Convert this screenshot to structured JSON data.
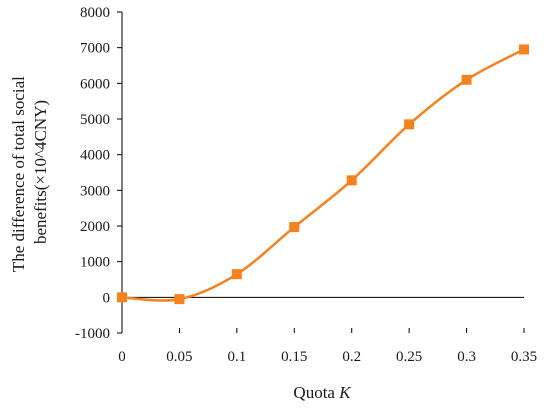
{
  "chart_data": {
    "type": "line",
    "title": "",
    "xlabel": "Quota",
    "xlabel_var": "K",
    "ylabel_line1": "The difference of total social",
    "ylabel_line2": "benefits(×10^4CNY)",
    "x": [
      0,
      0.05,
      0.1,
      0.15,
      0.2,
      0.25,
      0.3,
      0.35
    ],
    "x_tick_labels": [
      "0",
      "0.05",
      "0.1",
      "0.15",
      "0.2",
      "0.25",
      "0.3",
      "0.35"
    ],
    "y_ticks": [
      -1000,
      0,
      1000,
      2000,
      3000,
      4000,
      5000,
      6000,
      7000,
      8000
    ],
    "y_tick_labels": [
      "-1000",
      "0",
      "1000",
      "2000",
      "3000",
      "4000",
      "5000",
      "6000",
      "7000",
      "8000"
    ],
    "xlim": [
      0,
      0.35
    ],
    "ylim": [
      -1000,
      8000
    ],
    "grid": false,
    "legend": "none",
    "marker": "square",
    "smooth": true,
    "series": [
      {
        "color": "#f5821f",
        "values": [
          0,
          -50,
          650,
          1970,
          3280,
          4850,
          6100,
          6950
        ]
      }
    ]
  }
}
